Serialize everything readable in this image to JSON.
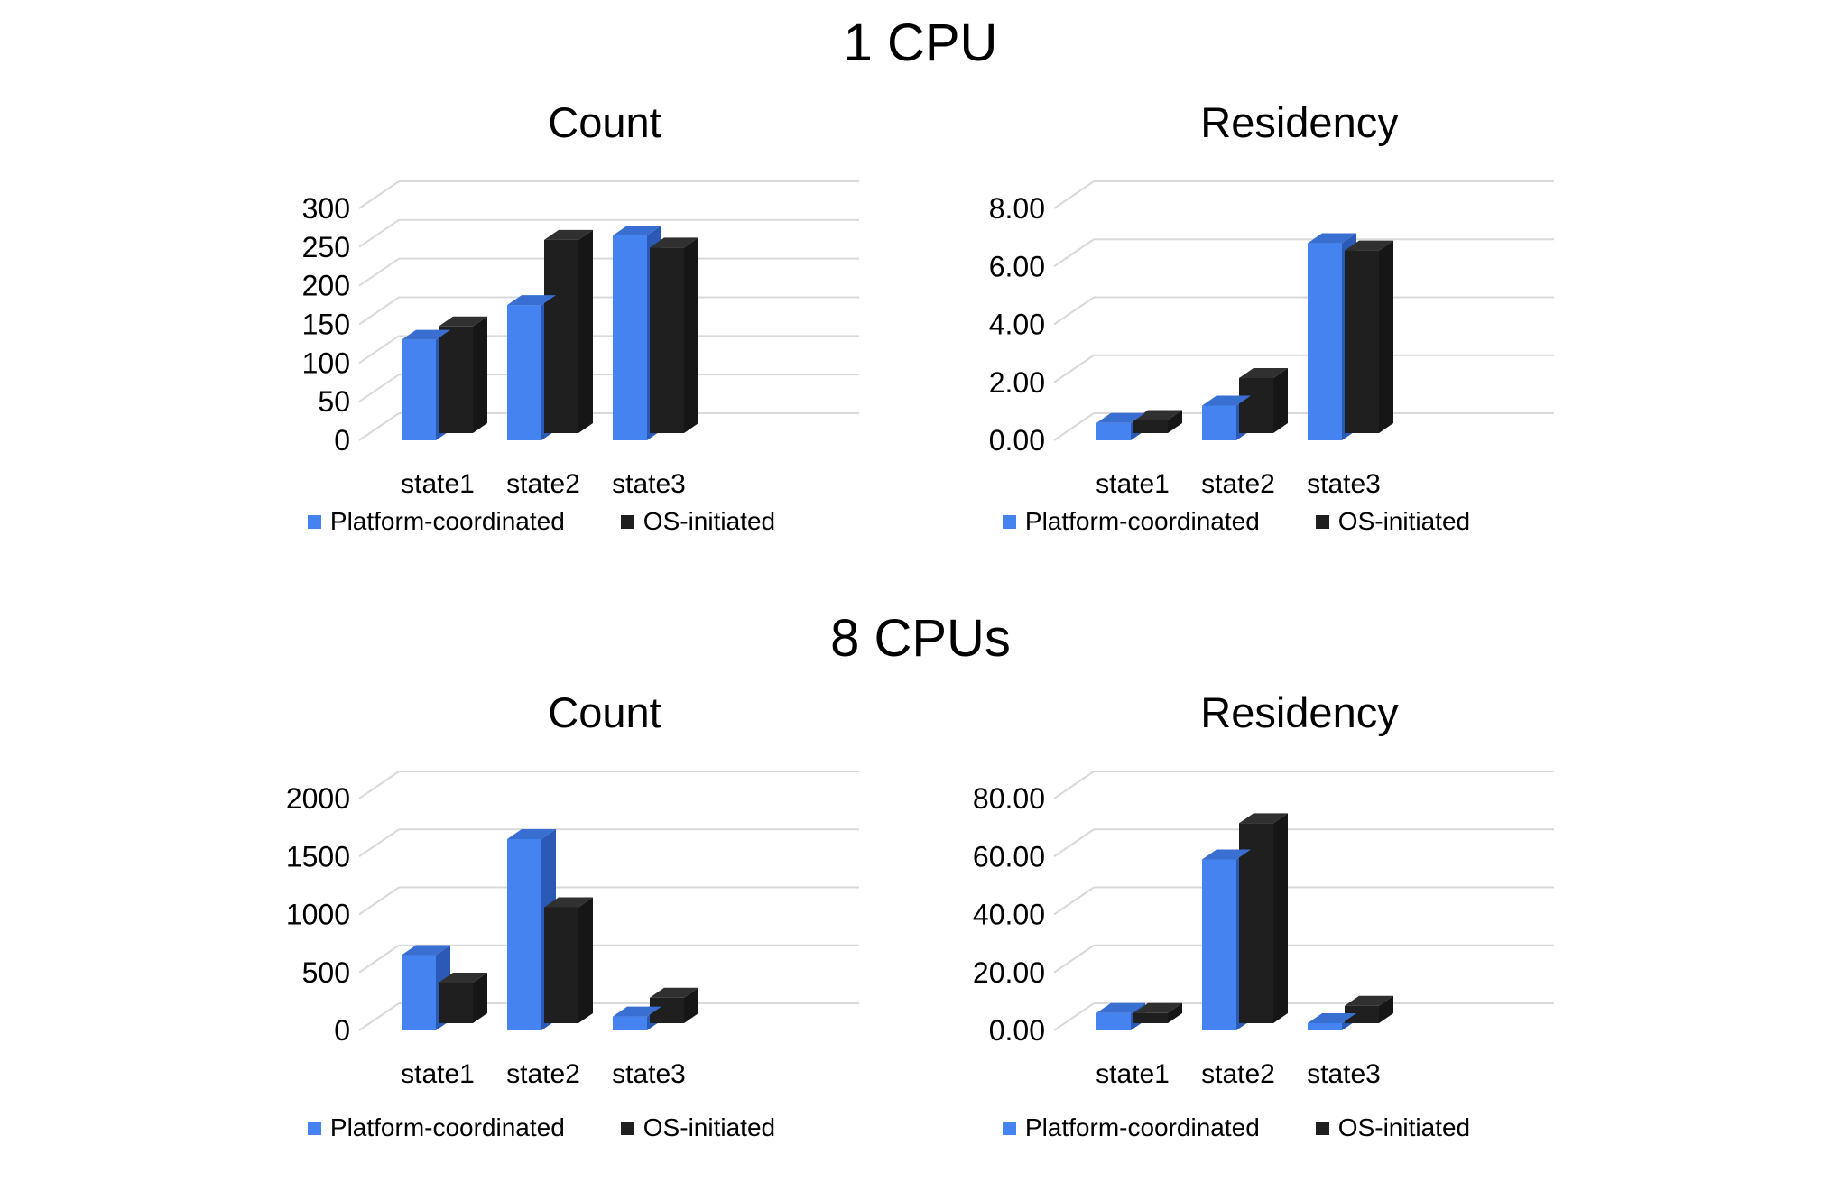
{
  "sections": [
    {
      "title": "1 CPU"
    },
    {
      "title": "8 CPUs"
    }
  ],
  "legend": {
    "series1": "Platform-coordinated",
    "series2": "OS-initiated"
  },
  "colors": {
    "platform_front": "#4583f0",
    "platform_top": "#3a6fd2",
    "platform_side": "#2a5ab6",
    "os_front": "#1f1f1f",
    "os_top": "#303030",
    "os_side": "#161616",
    "gridline": "#d9d9d9",
    "text": "#000000",
    "background": "#ffffff"
  },
  "chart_data": [
    {
      "type": "bar",
      "style": "3d-column",
      "section": "1 CPU",
      "title": "Count",
      "categories": [
        "state1",
        "state2",
        "state3"
      ],
      "series": [
        {
          "name": "Platform-coordinated",
          "values": [
            130,
            175,
            265
          ]
        },
        {
          "name": "OS-initiated",
          "values": [
            138,
            250,
            240
          ]
        }
      ],
      "xlabel": "",
      "ylabel": "",
      "ylim": [
        0,
        300
      ],
      "ytick_labels": [
        "300",
        "250",
        "200",
        "150",
        "100",
        "50",
        "0"
      ],
      "grid": true,
      "legend_position": "bottom"
    },
    {
      "type": "bar",
      "style": "3d-column",
      "section": "1 CPU",
      "title": "Residency",
      "categories": [
        "state1",
        "state2",
        "state3"
      ],
      "series": [
        {
          "name": "Platform-coordinated",
          "values": [
            0.6,
            1.2,
            6.8
          ]
        },
        {
          "name": "OS-initiated",
          "values": [
            0.45,
            1.9,
            6.3
          ]
        }
      ],
      "xlabel": "",
      "ylabel": "",
      "ylim": [
        0,
        8
      ],
      "ytick_labels": [
        "8.00",
        "6.00",
        "4.00",
        "2.00",
        "0.00"
      ],
      "grid": true,
      "legend_position": "bottom"
    },
    {
      "type": "bar",
      "style": "3d-column",
      "section": "8 CPUs",
      "title": "Count",
      "categories": [
        "state1",
        "state2",
        "state3"
      ],
      "series": [
        {
          "name": "Platform-coordinated",
          "values": [
            650,
            1650,
            120
          ]
        },
        {
          "name": "OS-initiated",
          "values": [
            350,
            1000,
            220
          ]
        }
      ],
      "xlabel": "",
      "ylabel": "",
      "ylim": [
        0,
        2000
      ],
      "ytick_labels": [
        "2000",
        "1500",
        "1000",
        "500",
        "0"
      ],
      "grid": true,
      "legend_position": "bottom"
    },
    {
      "type": "bar",
      "style": "3d-column",
      "section": "8 CPUs",
      "title": "Residency",
      "categories": [
        "state1",
        "state2",
        "state3"
      ],
      "series": [
        {
          "name": "Platform-coordinated",
          "values": [
            6,
            59,
            2.5
          ]
        },
        {
          "name": "OS-initiated",
          "values": [
            3.5,
            69,
            6
          ]
        }
      ],
      "xlabel": "",
      "ylabel": "",
      "ylim": [
        0,
        80
      ],
      "ytick_labels": [
        "80.00",
        "60.00",
        "40.00",
        "20.00",
        "0.00"
      ],
      "grid": true,
      "legend_position": "bottom"
    }
  ]
}
